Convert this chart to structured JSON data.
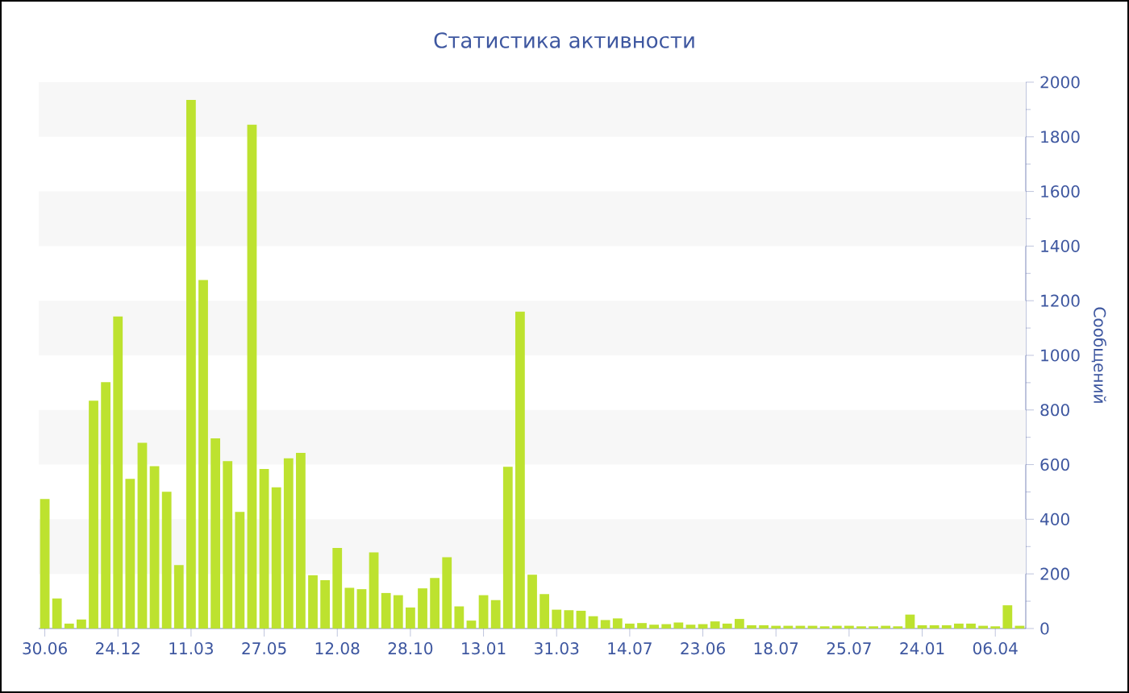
{
  "chart_data": {
    "type": "bar",
    "title": "Статистика активности",
    "ylabel": "Сообщений",
    "categories": [
      "30.06",
      null,
      null,
      null,
      null,
      null,
      "24.12",
      null,
      null,
      null,
      null,
      null,
      "11.03",
      null,
      null,
      null,
      null,
      null,
      "27.05",
      null,
      null,
      null,
      null,
      null,
      "12.08",
      null,
      null,
      null,
      null,
      null,
      "28.10",
      null,
      null,
      null,
      null,
      null,
      "13.01",
      null,
      null,
      null,
      null,
      null,
      "31.03",
      null,
      null,
      null,
      null,
      null,
      "14.07",
      null,
      null,
      null,
      null,
      null,
      "23.06",
      null,
      null,
      null,
      null,
      null,
      "18.07",
      null,
      null,
      null,
      null,
      null,
      "25.07",
      null,
      null,
      null,
      null,
      null,
      "24.01",
      null,
      null,
      null,
      null,
      null,
      "06.04",
      null,
      null
    ],
    "values": [
      474,
      110,
      18,
      33,
      834,
      902,
      1142,
      548,
      680,
      594,
      501,
      232,
      1935,
      1276,
      696,
      613,
      427,
      1844,
      584,
      517,
      623,
      643,
      195,
      177,
      295,
      149,
      144,
      279,
      130,
      122,
      77,
      147,
      185,
      261,
      81,
      29,
      122,
      104,
      592,
      1160,
      197,
      126,
      69,
      67,
      65,
      45,
      31,
      37,
      18,
      20,
      14,
      16,
      22,
      14,
      16,
      26,
      18,
      35,
      12,
      12,
      10,
      10,
      10,
      10,
      8,
      10,
      10,
      8,
      8,
      10,
      8,
      51,
      12,
      12,
      12,
      18,
      18,
      10,
      8,
      85,
      10
    ],
    "color": "#bde22f",
    "ylim": [
      0,
      2000
    ],
    "yticks": [
      0,
      200,
      400,
      600,
      800,
      1000,
      1200,
      1400,
      1600,
      1800,
      2000
    ],
    "bands": [
      {
        "axis": "y",
        "from": 200,
        "to": 400,
        "color": "#f7f7f7"
      },
      {
        "axis": "y",
        "from": 600,
        "to": 800,
        "color": "#f7f7f7"
      },
      {
        "axis": "y",
        "from": 1000,
        "to": 1200,
        "color": "#f7f7f7"
      },
      {
        "axis": "y",
        "from": 1400,
        "to": 1600,
        "color": "#f7f7f7"
      },
      {
        "axis": "y",
        "from": 1800,
        "to": 2000,
        "color": "#f7f7f7"
      }
    ]
  }
}
